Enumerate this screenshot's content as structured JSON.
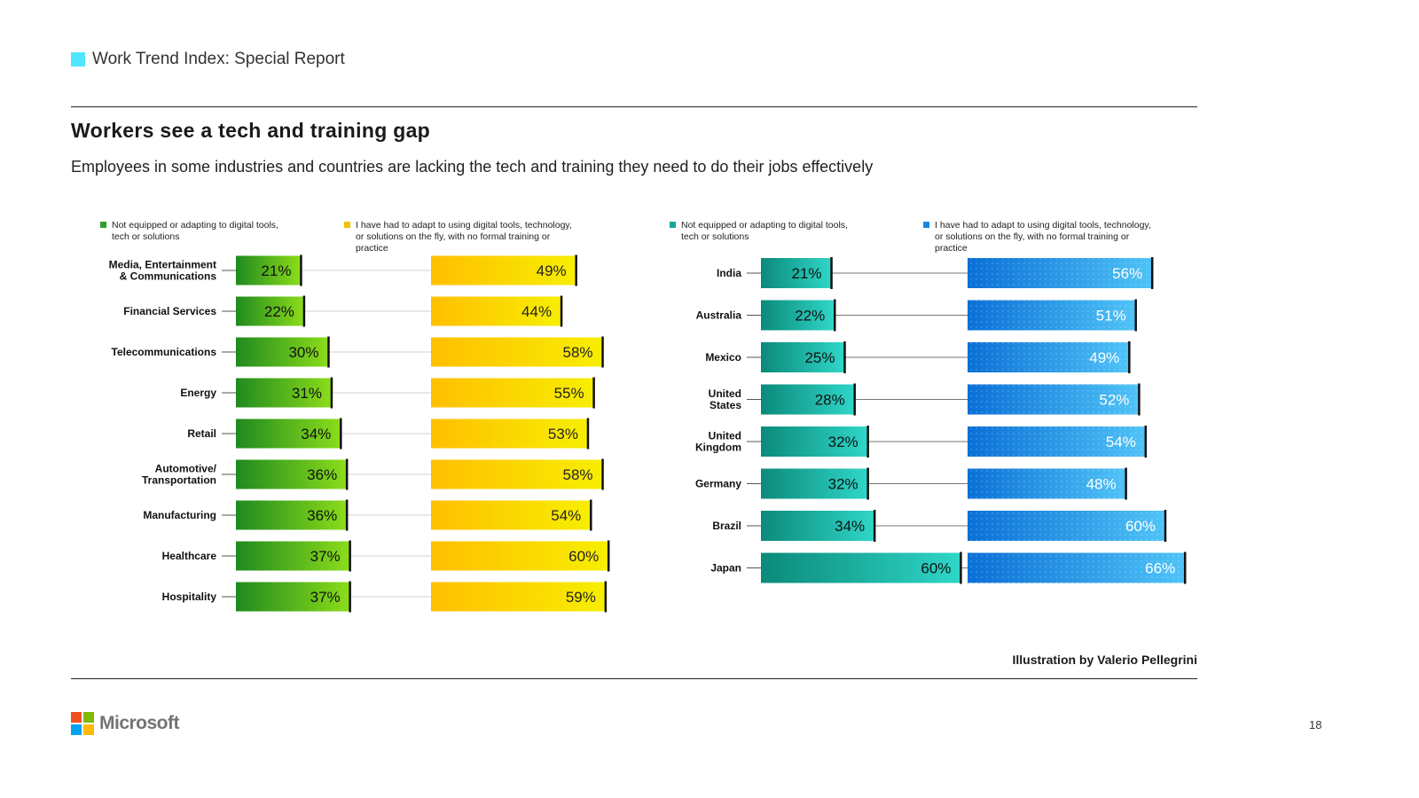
{
  "header": {
    "label": "Work Trend Index: Special Report"
  },
  "title": "Workers see a tech and training gap",
  "subtitle": "Employees in some industries and countries are lacking the tech and training they need to do their jobs effectively",
  "credit": "Illustration by Valerio Pellegrini",
  "footer": {
    "brand": "Microsoft",
    "page_number": "18"
  },
  "colors": {
    "accent": "#50e6ff",
    "green_dark": "#1f8a1f",
    "green_light": "#8bdc1a",
    "yellow_dark": "#ffbf00",
    "yellow_light": "#f7ee00",
    "teal_dark": "#0b8a7a",
    "teal_light": "#2fd6c8",
    "blue_dark": "#0a6fd6",
    "blue_light": "#4fc3f7"
  },
  "chart_data": [
    {
      "type": "bar",
      "id": "industries",
      "legend": [
        "Not equipped or adapting to digital tools, tech or solutions",
        "I have had to adapt to using digital tools, technology, or solutions on the fly, with no formal training or practice"
      ],
      "categories": [
        "Media, Entertainment & Communications",
        "Financial Services",
        "Telecommunications",
        "Energy",
        "Retail",
        "Automotive/ Transportation",
        "Manufacturing",
        "Healthcare",
        "Hospitality"
      ],
      "series": [
        {
          "name": "Not equipped or adapting to digital tools, tech or solutions",
          "values": [
            21,
            22,
            30,
            31,
            34,
            36,
            36,
            37,
            37
          ]
        },
        {
          "name": "I have had to adapt to using digital tools, technology, or solutions on the fly, with no formal training or practice",
          "values": [
            49,
            44,
            58,
            55,
            53,
            58,
            54,
            60,
            59
          ]
        }
      ],
      "unit": "%"
    },
    {
      "type": "bar",
      "id": "countries",
      "legend": [
        "Not equipped or adapting to digital tools, tech or solutions",
        "I have had to adapt to using digital tools, technology, or solutions on the fly, with no formal training or practice"
      ],
      "categories": [
        "India",
        "Australia",
        "Mexico",
        "United States",
        "United Kingdom",
        "Germany",
        "Brazil",
        "Japan"
      ],
      "series": [
        {
          "name": "Not equipped or adapting to digital tools, tech or solutions",
          "values": [
            21,
            22,
            25,
            28,
            32,
            32,
            34,
            60
          ]
        },
        {
          "name": "I have had to adapt to using digital tools, technology, or solutions on the fly, with no formal training or practice",
          "values": [
            56,
            51,
            49,
            52,
            54,
            48,
            60,
            66
          ]
        }
      ],
      "unit": "%"
    }
  ]
}
